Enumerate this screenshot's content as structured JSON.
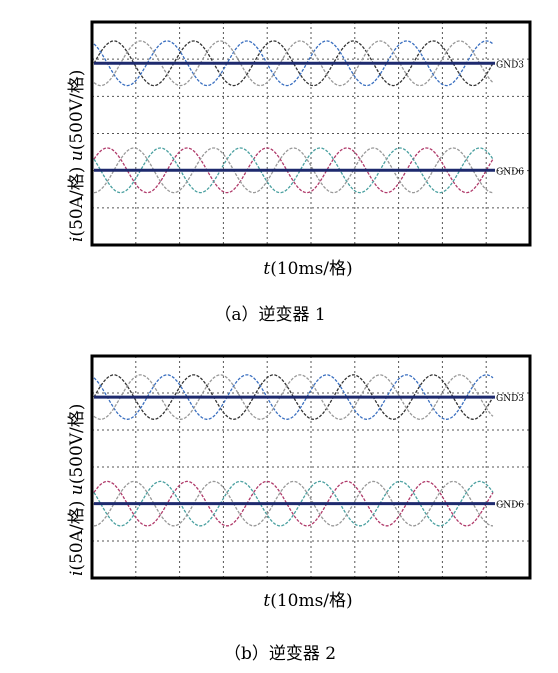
{
  "chart_data": [
    {
      "type": "line",
      "caption": "（a）逆变器 1",
      "xlabel_var": "t",
      "xlabel": "(10ms/格)",
      "ylabel_upper_var": "u",
      "ylabel_upper": "(500V/格)",
      "ylabel_lower_var": "i",
      "ylabel_lower": "(50A/格)",
      "grid": true,
      "grid_divisions": {
        "x": 10,
        "y": 6
      },
      "x_range_ms": [
        0,
        100
      ],
      "cycles_shown": 5,
      "channels": [
        {
          "group": "voltage",
          "marker": "GND3",
          "series": [
            {
              "color": "#333333",
              "phase_deg": 0
            },
            {
              "color": "#3a6fc0",
              "phase_deg": 120
            },
            {
              "color": "#999999",
              "phase_deg": 240
            }
          ]
        },
        {
          "group": "current",
          "marker": "GND6",
          "series": [
            {
              "color": "#b03a6a",
              "phase_deg": 30
            },
            {
              "color": "#4aa0a0",
              "phase_deg": 150
            },
            {
              "color": "#999999",
              "phase_deg": 270
            }
          ]
        }
      ],
      "colors": {
        "baseline": "#1e2a6e",
        "frame": "#000000",
        "grid": "#555555"
      }
    },
    {
      "type": "line",
      "caption": "（b）逆变器 2",
      "xlabel_var": "t",
      "xlabel": "(10ms/格)",
      "ylabel_upper_var": "u",
      "ylabel_upper": "(500V/格)",
      "ylabel_lower_var": "i",
      "ylabel_lower": "(50A/格)",
      "grid": true,
      "grid_divisions": {
        "x": 10,
        "y": 6
      },
      "x_range_ms": [
        0,
        100
      ],
      "cycles_shown": 5,
      "channels": [
        {
          "group": "voltage",
          "marker": "GND3",
          "series": [
            {
              "color": "#333333",
              "phase_deg": 0
            },
            {
              "color": "#3a6fc0",
              "phase_deg": 120
            },
            {
              "color": "#999999",
              "phase_deg": 240
            }
          ]
        },
        {
          "group": "current",
          "marker": "GND6",
          "series": [
            {
              "color": "#b03a6a",
              "phase_deg": 30
            },
            {
              "color": "#4aa0a0",
              "phase_deg": 150
            },
            {
              "color": "#999999",
              "phase_deg": 270
            }
          ]
        }
      ],
      "colors": {
        "baseline": "#1e2a6e",
        "frame": "#000000",
        "grid": "#555555"
      }
    }
  ]
}
